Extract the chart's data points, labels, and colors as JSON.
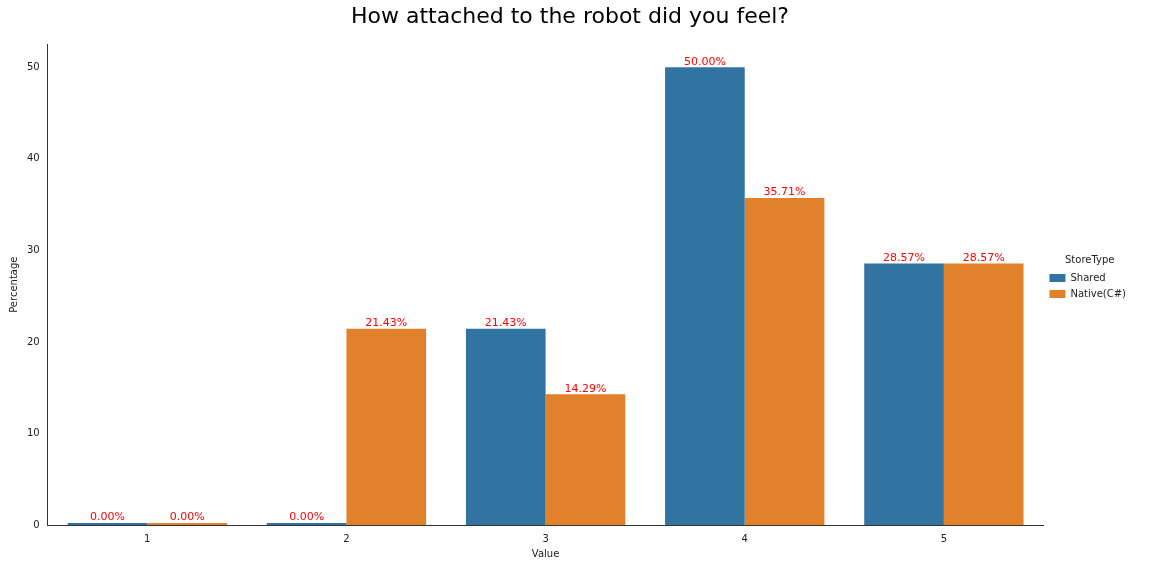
{
  "chart_data": {
    "type": "bar",
    "title": "How attached to the robot did you feel?",
    "xlabel": "Value",
    "ylabel": "Percentage",
    "legend_title": "StoreType",
    "legend": "right",
    "grid": false,
    "categories": [
      "1",
      "2",
      "3",
      "4",
      "5"
    ],
    "ylim": [
      0,
      52.5
    ],
    "yticks": [
      0,
      10,
      20,
      30,
      40,
      50
    ],
    "series": [
      {
        "name": "Shared",
        "color": "#3274a1",
        "values": [
          0,
          0,
          21.43,
          50,
          28.57
        ],
        "value_labels": [
          "0.00%",
          "0.00%",
          "21.43%",
          "50.00%",
          "28.57%"
        ]
      },
      {
        "name": "Native(C#)",
        "color": "#e1812c",
        "values": [
          0,
          21.43,
          14.29,
          35.71,
          28.57
        ],
        "value_labels": [
          "0.00%",
          "21.43%",
          "14.29%",
          "35.71%",
          "28.57%"
        ]
      }
    ]
  }
}
